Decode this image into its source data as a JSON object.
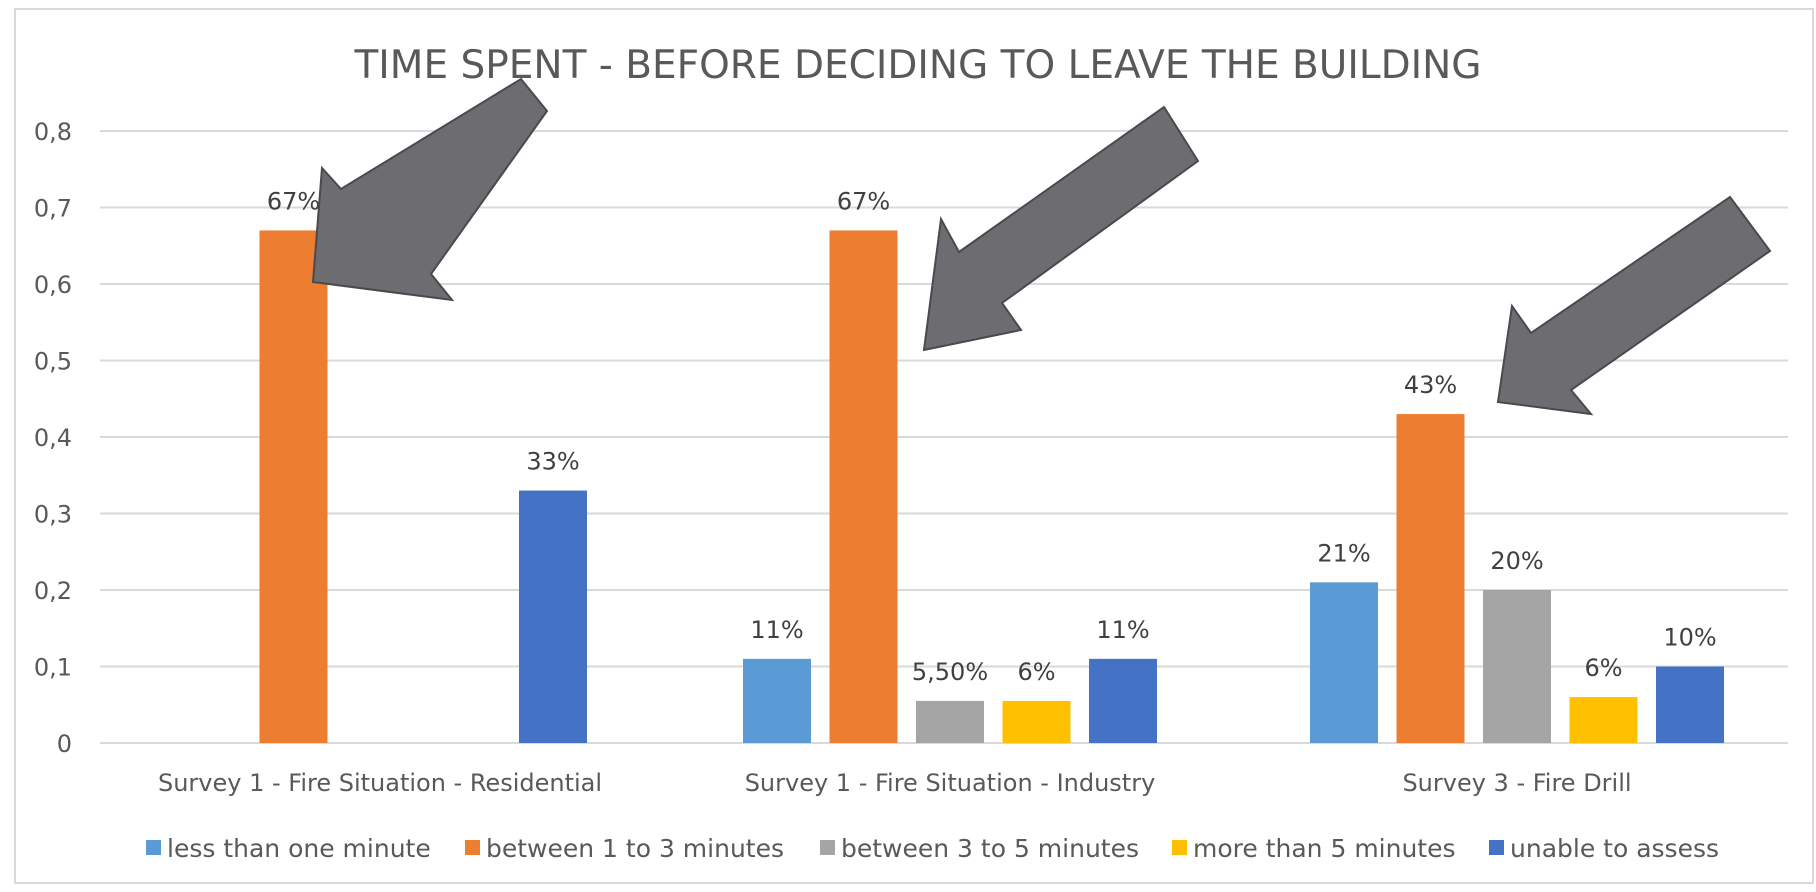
{
  "chart_data": {
    "type": "bar",
    "title": "TIME SPENT - BEFORE DECIDING TO LEAVE THE BUILDING",
    "xlabel": "",
    "ylabel": "",
    "ylim": [
      0,
      0.8
    ],
    "yticks": [
      "0",
      "0,1",
      "0,2",
      "0,3",
      "0,4",
      "0,5",
      "0,6",
      "0,7",
      "0,8"
    ],
    "categories": [
      "Survey 1 - Fire Situation - Residential",
      "Survey 1 - Fire Situation - Industry",
      "Survey 3 - Fire Drill"
    ],
    "series": [
      {
        "name": "less than one minute",
        "color": "#5b9bd5",
        "values": [
          null,
          0.11,
          0.21
        ],
        "labels": [
          "",
          "11%",
          "21%"
        ]
      },
      {
        "name": "between 1 to 3 minutes",
        "color": "#ed7d31",
        "values": [
          0.67,
          0.67,
          0.43
        ],
        "labels": [
          "67%",
          "67%",
          "43%"
        ]
      },
      {
        "name": "between 3 to 5 minutes",
        "color": "#a5a5a5",
        "values": [
          null,
          0.055,
          0.2
        ],
        "labels": [
          "",
          "5,50%",
          "20%"
        ]
      },
      {
        "name": "more than 5 minutes",
        "color": "#ffc000",
        "values": [
          null,
          0.055,
          0.06
        ],
        "labels": [
          "",
          "6%",
          "6%"
        ]
      },
      {
        "name": "unable to assess",
        "color": "#4472c4",
        "values": [
          0.33,
          0.11,
          0.1
        ],
        "labels": [
          "33%",
          "11%",
          "10%"
        ]
      }
    ],
    "grid": true,
    "legend_position": "bottom",
    "annotations": [
      {
        "type": "arrow",
        "color": "#6d6d71",
        "points_to": "Survey 1 - Fire Situation - Residential / between 1 to 3 minutes"
      },
      {
        "type": "arrow",
        "color": "#6d6d71",
        "points_to": "Survey 1 - Fire Situation - Industry / between 1 to 3 minutes"
      },
      {
        "type": "arrow",
        "color": "#6d6d71",
        "points_to": "Survey 3 - Fire Drill / between 1 to 3 minutes"
      }
    ]
  },
  "colors": {
    "grid": "#d9d9d9",
    "axis_text": "#595959",
    "arrow_fill": "#6d6d71",
    "arrow_stroke": "#4a4a4e"
  }
}
